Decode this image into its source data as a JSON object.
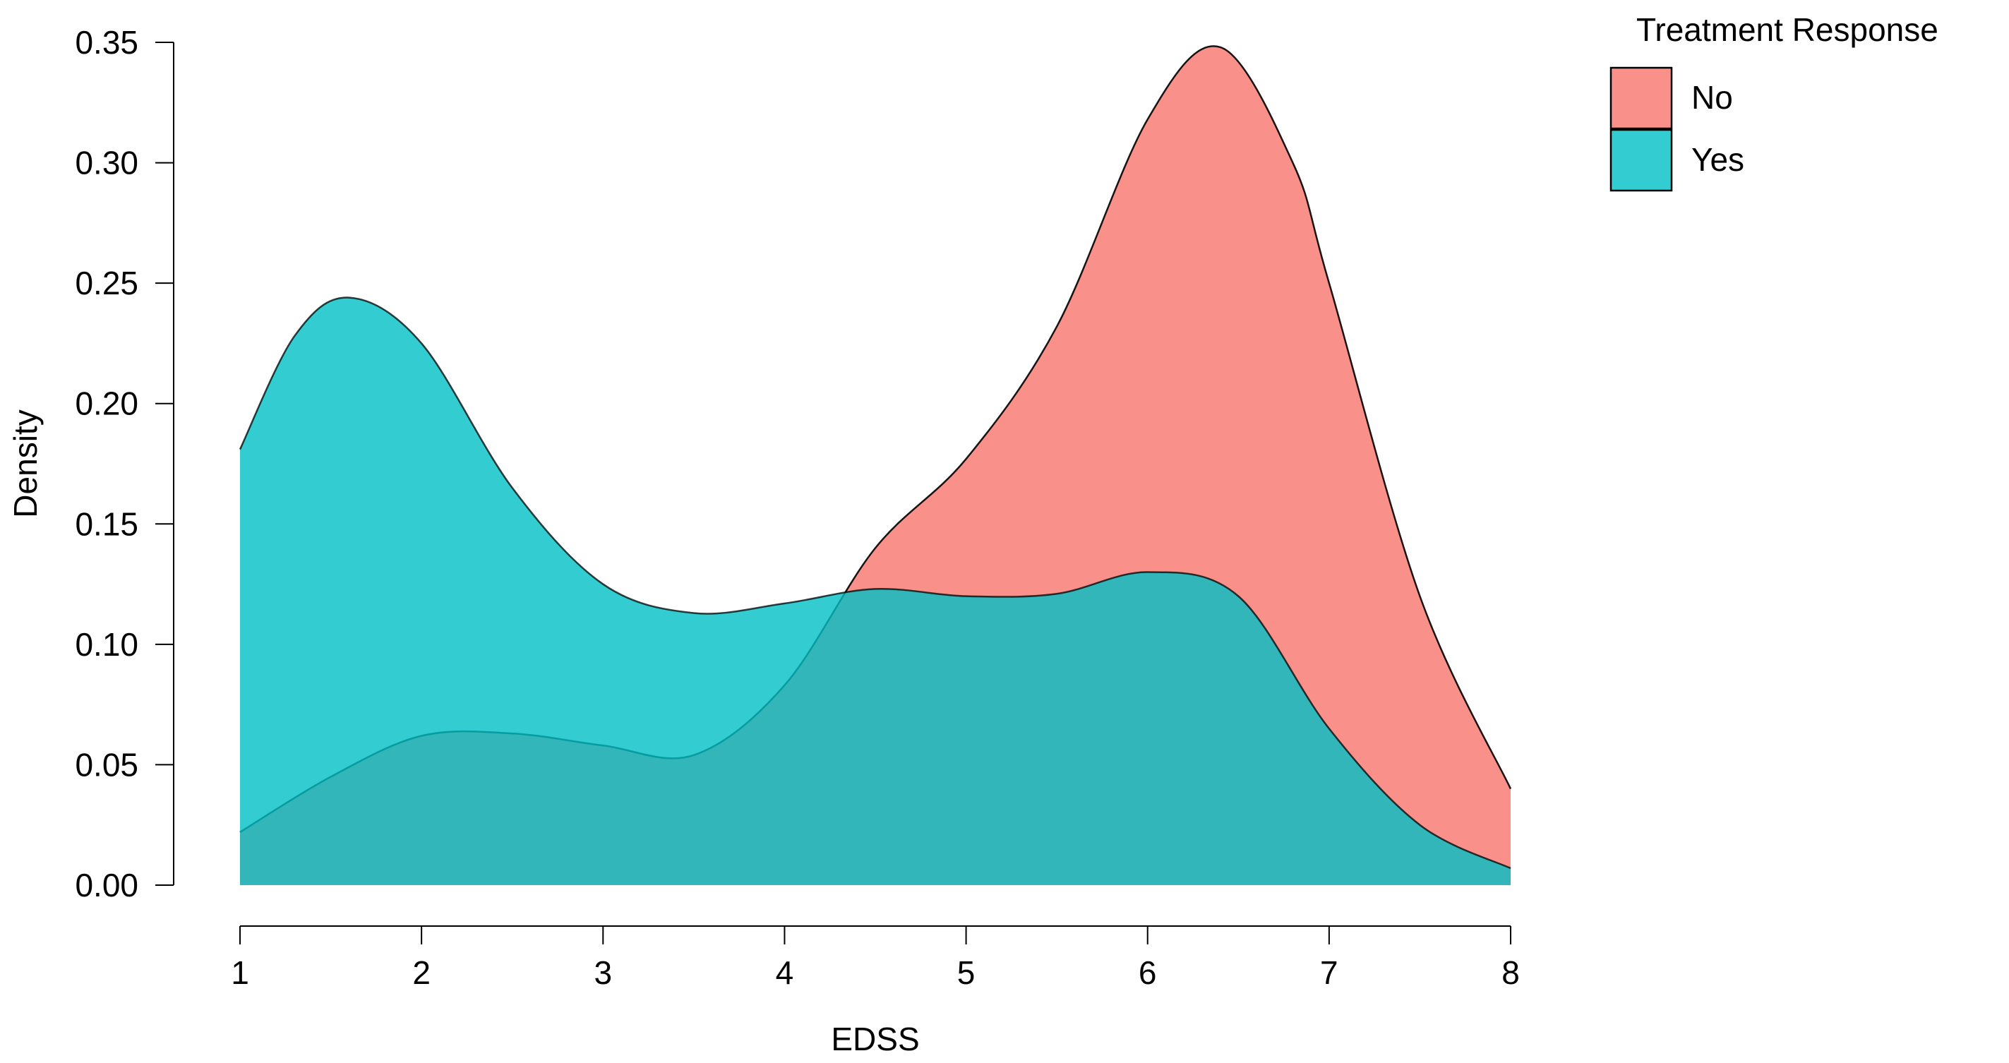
{
  "chart_data": {
    "type": "area",
    "subtype": "density",
    "xlabel": "EDSS",
    "ylabel": "Density",
    "xlim": [
      1,
      8
    ],
    "ylim": [
      0,
      0.35
    ],
    "xticks": [
      1,
      2,
      3,
      4,
      5,
      6,
      7,
      8
    ],
    "yticks": [
      0.0,
      0.05,
      0.1,
      0.15,
      0.2,
      0.25,
      0.3,
      0.35
    ],
    "ytick_labels": [
      "0.00",
      "0.05",
      "0.10",
      "0.15",
      "0.20",
      "0.25",
      "0.30",
      "0.35"
    ],
    "xtick_labels": [
      "1",
      "2",
      "3",
      "4",
      "5",
      "6",
      "7",
      "8"
    ],
    "grid": false,
    "legend": {
      "title": "Treatment Response",
      "placement": "top-right outside"
    },
    "series": [
      {
        "name": "No",
        "color": "#F8766D",
        "opacity": 0.8,
        "x": [
          1.0,
          1.5,
          2.0,
          2.5,
          3.0,
          3.5,
          4.0,
          4.5,
          5.0,
          5.5,
          6.0,
          6.4,
          6.8,
          7.0,
          7.5,
          8.0
        ],
        "y": [
          0.022,
          0.045,
          0.062,
          0.063,
          0.058,
          0.054,
          0.083,
          0.14,
          0.177,
          0.232,
          0.318,
          0.348,
          0.3,
          0.25,
          0.12,
          0.04
        ]
      },
      {
        "name": "Yes",
        "color": "#00BFC4",
        "opacity": 0.8,
        "x": [
          1.0,
          1.3,
          1.6,
          2.0,
          2.5,
          3.0,
          3.5,
          4.0,
          4.5,
          5.0,
          5.5,
          6.0,
          6.5,
          7.0,
          7.5,
          8.0
        ],
        "y": [
          0.181,
          0.228,
          0.244,
          0.225,
          0.165,
          0.125,
          0.113,
          0.117,
          0.123,
          0.12,
          0.121,
          0.13,
          0.12,
          0.065,
          0.025,
          0.007
        ]
      }
    ]
  }
}
